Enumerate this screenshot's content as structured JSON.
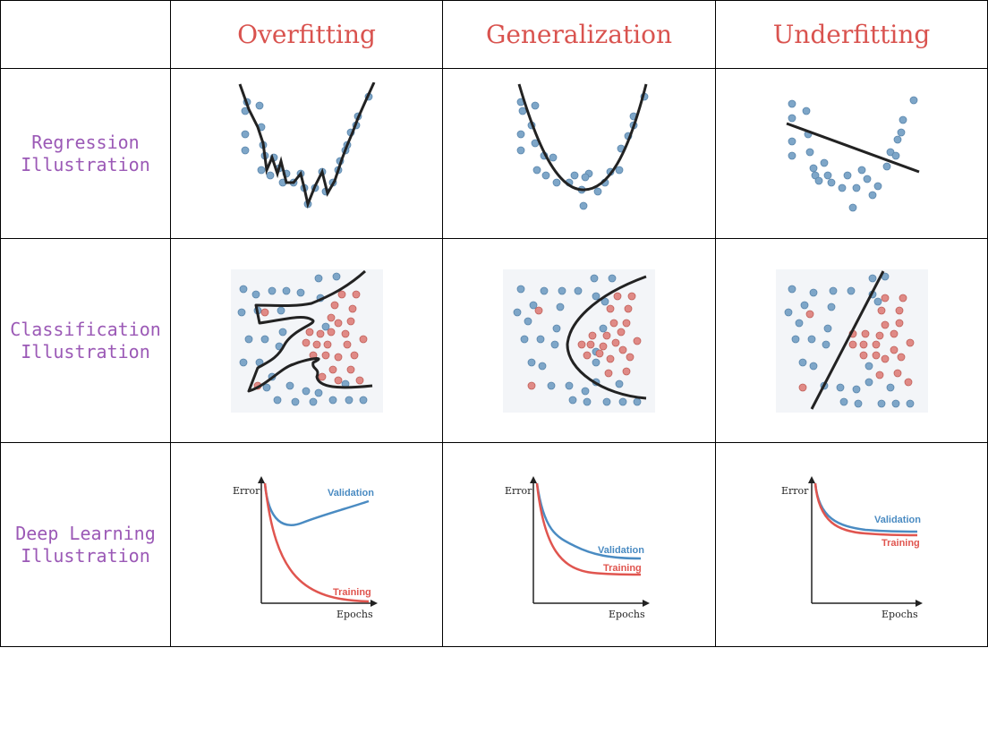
{
  "columns": [
    "Overfitting",
    "Generalization",
    "Underfitting"
  ],
  "rows": [
    {
      "line1": "Regression",
      "line2": "Illustration"
    },
    {
      "line1": "Classification",
      "line2": "Illustration"
    },
    {
      "line1": "Deep Learning",
      "line2": "Illustration"
    }
  ],
  "curve_labels": {
    "error": "Error",
    "epochs": "Epochs",
    "validation": "Validation",
    "training": "Training"
  },
  "colors": {
    "header_text": "#d9534f",
    "row_text": "#9b59b6",
    "blue_point": "#7ea6c8",
    "red_point": "#e08a86",
    "validation_line": "#4a8bc2",
    "training_line": "#e0554f"
  }
}
